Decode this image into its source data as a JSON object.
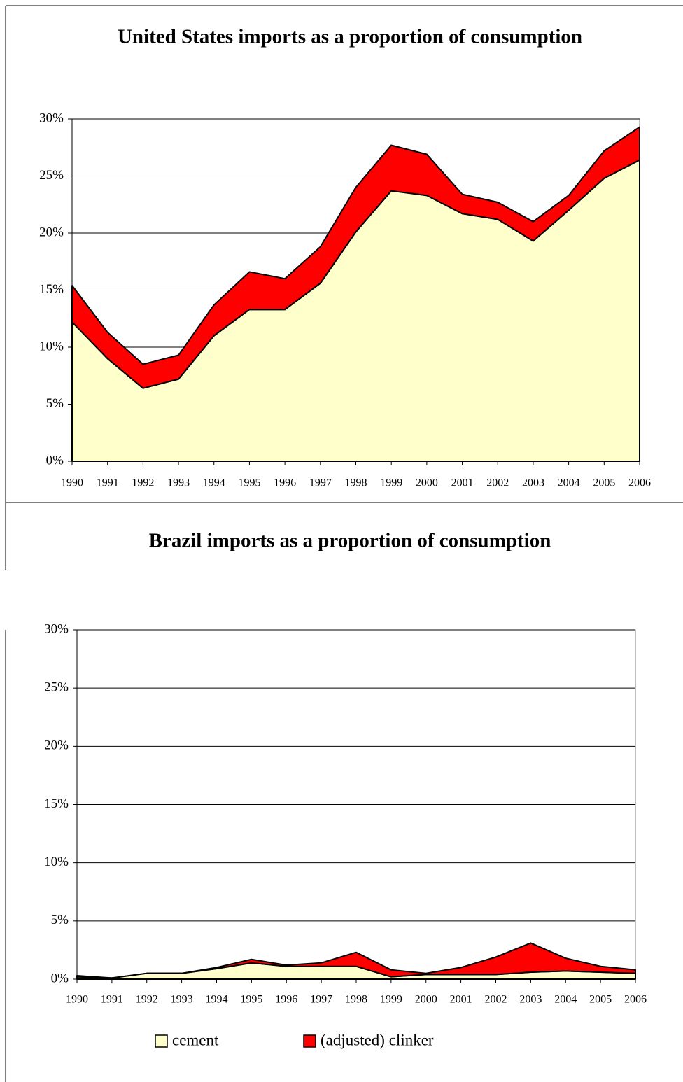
{
  "chart_data": [
    {
      "type": "area",
      "stacked": true,
      "title": "United States imports as a proportion of consumption",
      "categories": [
        "1990",
        "1991",
        "1992",
        "1993",
        "1994",
        "1995",
        "1996",
        "1997",
        "1998",
        "1999",
        "2000",
        "2001",
        "2002",
        "2003",
        "2004",
        "2005",
        "2006"
      ],
      "series": [
        {
          "color": "#ffffcc",
          "values": [
            12.2,
            9.0,
            6.4,
            7.2,
            11.0,
            13.3,
            13.3,
            15.6,
            20.1,
            23.7,
            23.3,
            21.7,
            21.2,
            19.3,
            22.0,
            24.8,
            26.4
          ]
        },
        {
          "color": "#ff0000",
          "values": [
            3.2,
            2.3,
            2.1,
            2.1,
            2.7,
            3.3,
            2.7,
            3.2,
            3.9,
            4.0,
            3.6,
            1.7,
            1.5,
            1.7,
            1.3,
            2.4,
            2.9
          ]
        }
      ],
      "ylim": [
        0,
        30
      ],
      "yticks": [
        {
          "value": 0,
          "label": "0%"
        },
        {
          "value": 5,
          "label": "5%"
        },
        {
          "value": 10,
          "label": "10%"
        },
        {
          "value": 15,
          "label": "15%"
        },
        {
          "value": 20,
          "label": "20%"
        },
        {
          "value": 25,
          "label": "25%"
        },
        {
          "value": 30,
          "label": "30%"
        }
      ],
      "grid": true
    },
    {
      "type": "area",
      "stacked": true,
      "title": "Brazil imports as a proportion of consumption",
      "categories": [
        "1990",
        "1991",
        "1992",
        "1993",
        "1994",
        "1995",
        "1996",
        "1997",
        "1998",
        "1999",
        "2000",
        "2001",
        "2002",
        "2003",
        "2004",
        "2005",
        "2006"
      ],
      "series": [
        {
          "name": "cement",
          "color": "#ffffcc",
          "values": [
            0.2,
            0.1,
            0.5,
            0.5,
            0.9,
            1.4,
            1.1,
            1.1,
            1.1,
            0.2,
            0.4,
            0.4,
            0.4,
            0.6,
            0.7,
            0.6,
            0.5
          ]
        },
        {
          "name": "(adjusted) clinker",
          "color": "#ff0000",
          "values": [
            0.1,
            0,
            0,
            0,
            0.1,
            0.3,
            0.1,
            0.3,
            1.2,
            0.6,
            0.1,
            0.6,
            1.5,
            2.5,
            1.1,
            0.5,
            0.3
          ]
        }
      ],
      "ylim": [
        0,
        30
      ],
      "yticks": [
        {
          "value": 0,
          "label": "0%"
        },
        {
          "value": 5,
          "label": "5%"
        },
        {
          "value": 10,
          "label": "10%"
        },
        {
          "value": 15,
          "label": "15%"
        },
        {
          "value": 20,
          "label": "20%"
        },
        {
          "value": 25,
          "label": "25%"
        },
        {
          "value": 30,
          "label": "30%"
        }
      ],
      "grid": true,
      "legend": "bottom"
    }
  ]
}
